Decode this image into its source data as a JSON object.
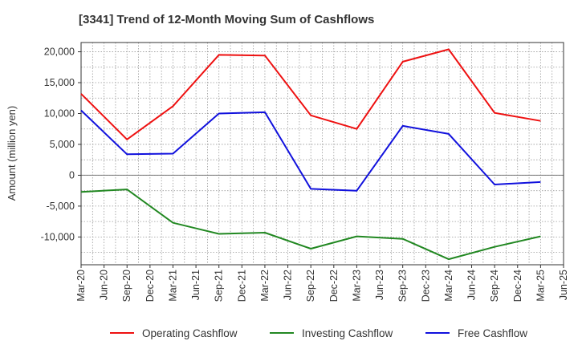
{
  "chart_data": {
    "type": "line",
    "title": "[3341]  Trend of 12-Month Moving Sum of Cashflows",
    "xlabel": "",
    "ylabel": "Amount (million yen)",
    "x_ticks": [
      "Mar-20",
      "Jun-20",
      "Sep-20",
      "Dec-20",
      "Mar-21",
      "Jun-21",
      "Sep-21",
      "Dec-21",
      "Mar-22",
      "Jun-22",
      "Sep-22",
      "Dec-22",
      "Mar-23",
      "Jun-23",
      "Sep-23",
      "Dec-23",
      "Mar-24",
      "Jun-24",
      "Sep-24",
      "Dec-24",
      "Mar-25",
      "Jun-25"
    ],
    "y_ticks": [
      20000,
      15000,
      10000,
      5000,
      0,
      -5000,
      -10000
    ],
    "y_tick_labels": [
      "20,000",
      "15,000",
      "10,000",
      "5,000",
      "0",
      "-5,000",
      "-10,000"
    ],
    "ylim": [
      -14500,
      21500
    ],
    "grid": true,
    "legend_position": "bottom",
    "series": [
      {
        "name": "Operating Cashflow",
        "color": "#ee1111",
        "x": [
          "Mar-20",
          "Sep-20",
          "Mar-21",
          "Sep-21",
          "Mar-22",
          "Sep-22",
          "Mar-23",
          "Sep-23",
          "Mar-24",
          "Sep-24",
          "Mar-25"
        ],
        "values": [
          13200,
          5800,
          11200,
          19500,
          19400,
          9700,
          7500,
          18400,
          20400,
          10100,
          8800
        ]
      },
      {
        "name": "Investing Cashflow",
        "color": "#228822",
        "x": [
          "Mar-20",
          "Sep-20",
          "Mar-21",
          "Sep-21",
          "Mar-22",
          "Sep-22",
          "Mar-23",
          "Sep-23",
          "Mar-24",
          "Sep-24",
          "Mar-25"
        ],
        "values": [
          -2700,
          -2300,
          -7700,
          -9500,
          -9300,
          -11900,
          -9900,
          -10300,
          -13600,
          -11600,
          -9900
        ]
      },
      {
        "name": "Free Cashflow",
        "color": "#1111dd",
        "x": [
          "Mar-20",
          "Sep-20",
          "Mar-21",
          "Sep-21",
          "Mar-22",
          "Sep-22",
          "Mar-23",
          "Sep-23",
          "Mar-24",
          "Sep-24",
          "Mar-25"
        ],
        "values": [
          10500,
          3400,
          3500,
          10000,
          10200,
          -2200,
          -2500,
          8000,
          6700,
          -1500,
          -1100
        ]
      }
    ]
  }
}
